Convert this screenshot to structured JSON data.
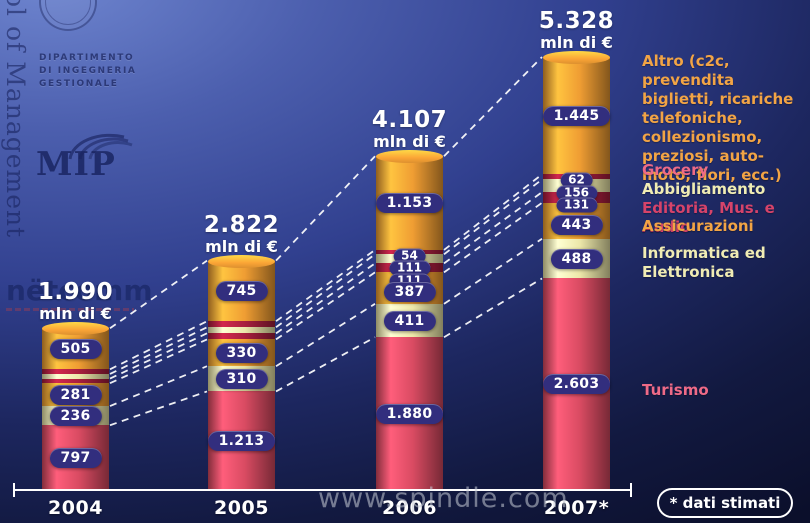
{
  "branding": {
    "vertical_text": "ol of Management",
    "department_lines": [
      "DIPARTIMENTO",
      "DI INGEGNERIA",
      "GESTIONALE"
    ],
    "mip": "MIP",
    "netcomm": "nëtcomm"
  },
  "watermark": "www.spindle.com",
  "footnote": "* dati stimati",
  "legend": {
    "altro": {
      "lead": "Altro",
      "rest": "(c2c, prevendita biglietti, ricariche telefoniche, collezionismo, preziosi, auto-moto, fiori, ecc.)"
    },
    "grocery": "Grocery",
    "abbigliamento": "Abbigliamento",
    "editoria": "Editoria, Mus. e Audio",
    "assicurazioni": "Assicurazioni",
    "informatica": "Informatica ed Elettronica",
    "turismo": "Turismo",
    "colors": {
      "orange": "#f2a445",
      "cream": "#f0ecb4",
      "rose": "#ee6a87",
      "crimson": "#d6436a"
    }
  },
  "chart_data": {
    "type": "bar",
    "stacked": true,
    "categories": [
      "2004",
      "2005",
      "2006",
      "2007*"
    ],
    "unit_label": "mln di €",
    "totals": [
      1990,
      2822,
      4107,
      5328
    ],
    "total_labels": [
      "1.990",
      "2.822",
      "4.107",
      "5.328"
    ],
    "series": [
      {
        "name": "Altro",
        "color": "orange",
        "values": [
          505,
          745,
          1153,
          1445
        ],
        "labels": [
          "505",
          "745",
          "1.153",
          "1.445"
        ]
      },
      {
        "name": "Grocery",
        "color": "darkred",
        "values": [
          null,
          null,
          54,
          62
        ],
        "labels": [
          null,
          null,
          "54",
          "62"
        ]
      },
      {
        "name": "Abbigliamento",
        "color": "cream",
        "values": [
          null,
          null,
          111,
          156
        ],
        "labels": [
          null,
          null,
          "111",
          "156"
        ]
      },
      {
        "name": "Editoria, Mus. e Audio",
        "color": "darkred",
        "values": [
          null,
          null,
          111,
          131
        ],
        "labels": [
          null,
          null,
          "111",
          "131"
        ]
      },
      {
        "name": "Assicurazioni",
        "color": "orange",
        "values": [
          281,
          330,
          387,
          443
        ],
        "labels": [
          "281",
          "330",
          "387",
          "443"
        ]
      },
      {
        "name": "Informatica ed Elettronica",
        "color": "cream",
        "values": [
          236,
          310,
          411,
          488
        ],
        "labels": [
          "236",
          "310",
          "411",
          "488"
        ]
      },
      {
        "name": "Turismo",
        "color": "rose",
        "values": [
          797,
          1213,
          1880,
          2603
        ],
        "labels": [
          "797",
          "1.213",
          "1.880",
          "2.603"
        ]
      }
    ],
    "colors": {
      "orange": "#ef9d33",
      "darkred": "#a81f3e",
      "cream": "#ece7a9",
      "rose": "#d94b62",
      "pill": "#322e7e"
    },
    "legend_position": "right",
    "connector_style": "dashed-white"
  }
}
